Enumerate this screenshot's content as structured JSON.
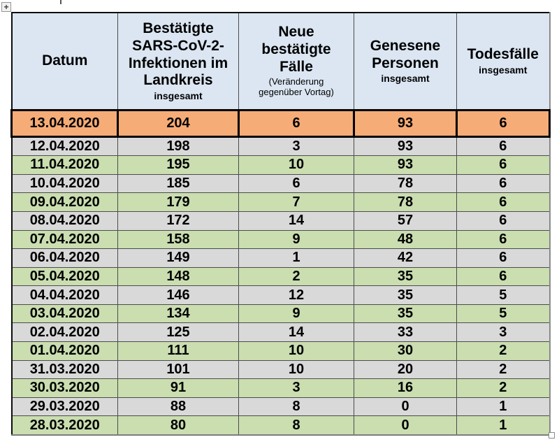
{
  "icons": {
    "table_move_handle": "plus-cross",
    "table_move_glyph": "+",
    "table_resize_handle": "small-square"
  },
  "colors": {
    "header_bg": "#dbe6f2",
    "highlight_row_bg": "#f6ac77",
    "stripe_gray_bg": "#d9d9d9",
    "stripe_green_bg": "#cadeb0",
    "highlight_border": "#000000",
    "grid_border": "#4c4c4c",
    "page_bg": "#ffffff"
  },
  "table": {
    "columns": [
      {
        "label": "Datum",
        "sub": ""
      },
      {
        "label": "Bestätigte SARS-CoV-2-Infektionen im Landkreis",
        "sub": "insgesamt"
      },
      {
        "label": "Neue bestätigte Fälle",
        "sub": "(Veränderung gegenüber Vortag)"
      },
      {
        "label": "Genesene Personen",
        "sub": "insgesamt"
      },
      {
        "label": "Todesfälle",
        "sub": "insgesamt"
      }
    ],
    "rows": [
      {
        "date": "13.04.2020",
        "total": "204",
        "new": "6",
        "recovered": "93",
        "deaths": "6",
        "style": "highlight"
      },
      {
        "date": "12.04.2020",
        "total": "198",
        "new": "3",
        "recovered": "93",
        "deaths": "6",
        "style": "gray"
      },
      {
        "date": "11.04.2020",
        "total": "195",
        "new": "10",
        "recovered": "93",
        "deaths": "6",
        "style": "green"
      },
      {
        "date": "10.04.2020",
        "total": "185",
        "new": "6",
        "recovered": "78",
        "deaths": "6",
        "style": "gray"
      },
      {
        "date": "09.04.2020",
        "total": "179",
        "new": "7",
        "recovered": "78",
        "deaths": "6",
        "style": "green"
      },
      {
        "date": "08.04.2020",
        "total": "172",
        "new": "14",
        "recovered": "57",
        "deaths": "6",
        "style": "gray"
      },
      {
        "date": "07.04.2020",
        "total": "158",
        "new": "9",
        "recovered": "48",
        "deaths": "6",
        "style": "green"
      },
      {
        "date": "06.04.2020",
        "total": "149",
        "new": "1",
        "recovered": "42",
        "deaths": "6",
        "style": "gray"
      },
      {
        "date": "05.04.2020",
        "total": "148",
        "new": "2",
        "recovered": "35",
        "deaths": "6",
        "style": "green"
      },
      {
        "date": "04.04.2020",
        "total": "146",
        "new": "12",
        "recovered": "35",
        "deaths": "5",
        "style": "gray"
      },
      {
        "date": "03.04.2020",
        "total": "134",
        "new": "9",
        "recovered": "35",
        "deaths": "5",
        "style": "green"
      },
      {
        "date": "02.04.2020",
        "total": "125",
        "new": "14",
        "recovered": "33",
        "deaths": "3",
        "style": "gray"
      },
      {
        "date": "01.04.2020",
        "total": "111",
        "new": "10",
        "recovered": "30",
        "deaths": "2",
        "style": "green"
      },
      {
        "date": "31.03.2020",
        "total": "101",
        "new": "10",
        "recovered": "20",
        "deaths": "2",
        "style": "gray"
      },
      {
        "date": "30.03.2020",
        "total": "91",
        "new": "3",
        "recovered": "16",
        "deaths": "2",
        "style": "green"
      },
      {
        "date": "29.03.2020",
        "total": "88",
        "new": "8",
        "recovered": "0",
        "deaths": "1",
        "style": "gray"
      },
      {
        "date": "28.03.2020",
        "total": "80",
        "new": "8",
        "recovered": "0",
        "deaths": "1",
        "style": "green"
      }
    ]
  }
}
